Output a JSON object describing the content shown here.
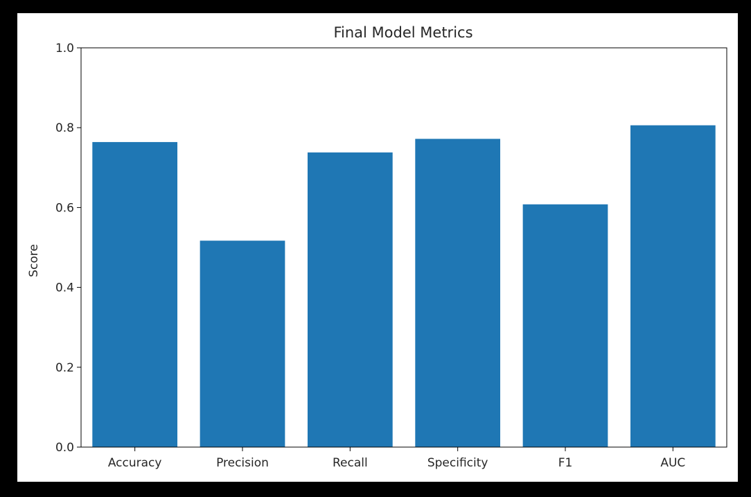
{
  "chart_data": {
    "type": "bar",
    "title": "Final Model Metrics",
    "xlabel": "",
    "ylabel": "Score",
    "categories": [
      "Accuracy",
      "Precision",
      "Recall",
      "Specificity",
      "F1",
      "AUC"
    ],
    "values": [
      0.764,
      0.517,
      0.738,
      0.772,
      0.608,
      0.806
    ],
    "ylim": [
      0.0,
      1.0
    ],
    "yticks": [
      "0.0",
      "0.2",
      "0.4",
      "0.6",
      "0.8",
      "1.0"
    ],
    "bar_color": "#1f77b4",
    "grid": false,
    "legend": "none"
  }
}
